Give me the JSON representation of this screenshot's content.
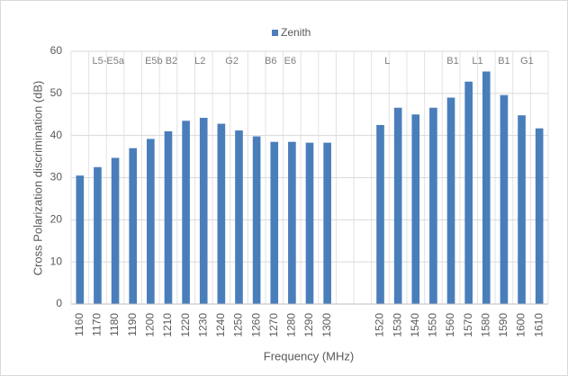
{
  "chart_data": {
    "type": "bar",
    "legend": "Zenith",
    "series": [
      {
        "name": "Zenith",
        "color": "#4a7ebb",
        "values": [
          30.5,
          32.5,
          34.7,
          37,
          39.2,
          41,
          43.5,
          44.2,
          42.8,
          41.2,
          39.8,
          38.5,
          38.5,
          38.3,
          38.3,
          null,
          null,
          42.5,
          46.6,
          45,
          46.6,
          49,
          52.8,
          55.2,
          49.6,
          44.8,
          41.7
        ]
      }
    ],
    "categories": [
      1160,
      1170,
      1180,
      1190,
      1200,
      1210,
      1220,
      1230,
      1240,
      1250,
      1260,
      1270,
      1280,
      1290,
      1300,
      null,
      null,
      1520,
      1530,
      1540,
      1550,
      1560,
      1570,
      1580,
      1590,
      1600,
      1610
    ],
    "xlabel": "Frequency (MHz)",
    "ylabel": "Cross Polarization discrimination (dB)",
    "ylim": [
      0,
      60
    ],
    "yticks": [
      0,
      10,
      20,
      30,
      40,
      50,
      60
    ],
    "grid": true,
    "annotations": [
      {
        "text": "L5-E5a",
        "x": 1176
      },
      {
        "text": "E5b B2",
        "x": 1206
      },
      {
        "text": "L2",
        "x": 1228
      },
      {
        "text": "G2",
        "x": 1246
      },
      {
        "text": "B6",
        "x": 1268
      },
      {
        "text": "E6",
        "x": 1279
      },
      {
        "text": "L",
        "x": 1524
      },
      {
        "text": "B1",
        "x": 1561
      },
      {
        "text": "L1",
        "x": 1575
      },
      {
        "text": "B1",
        "x": 1590
      },
      {
        "text": "G1",
        "x": 1603
      }
    ]
  }
}
